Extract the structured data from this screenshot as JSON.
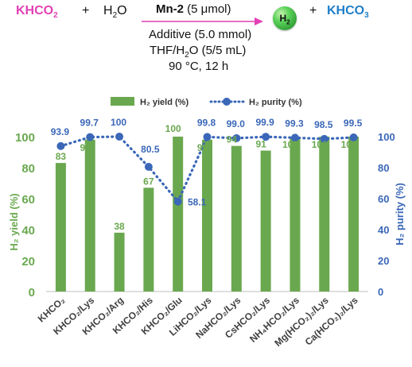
{
  "scheme": {
    "reactant1": "KHCO",
    "reactant1_sub": "2",
    "plus1": "+",
    "reactant2": "H",
    "reactant2_sub": "2",
    "reactant2_tail": "O",
    "catalyst_bold": "Mn-2",
    "catalyst_amount": "(5 μmol)",
    "condition_line2": "Additive (5.0 mmol)",
    "condition_line3": "THF/H",
    "condition_line3_sub": "2",
    "condition_line3_tail": "O (5/5 mL)",
    "condition_line4": "90 °C, 12 h",
    "product1": "H",
    "product1_sub": "2",
    "plus2": "+",
    "product2": "KHCO",
    "product2_sub": "3",
    "colors": {
      "khco2": "#e23fb4",
      "arrow": "#e23fb4",
      "khco3": "#1f7fc9",
      "h2_ball": "#3cb94a"
    }
  },
  "chart_data": {
    "type": "bar+line",
    "categories": [
      "KHCO₂",
      "KHCO₂/Lys",
      "KHCO₂/Arg",
      "KHCO₂/His",
      "KHCO₂/Glu",
      "LiHCO₂/Lys",
      "NaHCO₂/Lys",
      "CsHCO₂/Lys",
      "NH₄HCO₂/Lys",
      "Mg(HCO₂)₂/Lys",
      "Ca(HCO₂)₂/Lys"
    ],
    "series": [
      {
        "name": "H₂ yield (%)",
        "type": "bar",
        "axis": "left",
        "color": "#6aa84f",
        "values": [
          83,
          98,
          38,
          67,
          100,
          98,
          94,
          91,
          100,
          100,
          100
        ]
      },
      {
        "name": "H₂ purity (%)",
        "type": "line-dotted",
        "axis": "right",
        "color": "#3b67b8",
        "values": [
          93.9,
          99.7,
          100,
          80.5,
          58.1,
          99.8,
          99.0,
          99.9,
          99.3,
          98.5,
          99.5
        ]
      }
    ],
    "purity_labels": [
      "93.9",
      "99.7",
      "100",
      "80.5",
      "58.1",
      "99.8",
      "99.0",
      "99.9",
      "99.3",
      "98.5",
      "99.5"
    ],
    "ylabel_left": "H₂ yield (%)",
    "ylabel_right": "H₂ purity (%)",
    "ylim_left": [
      0,
      100
    ],
    "ylim_right": [
      0,
      100
    ],
    "yticks": [
      "0",
      "20",
      "40",
      "60",
      "80",
      "100"
    ],
    "legend_position": "top-center",
    "grid": false
  }
}
